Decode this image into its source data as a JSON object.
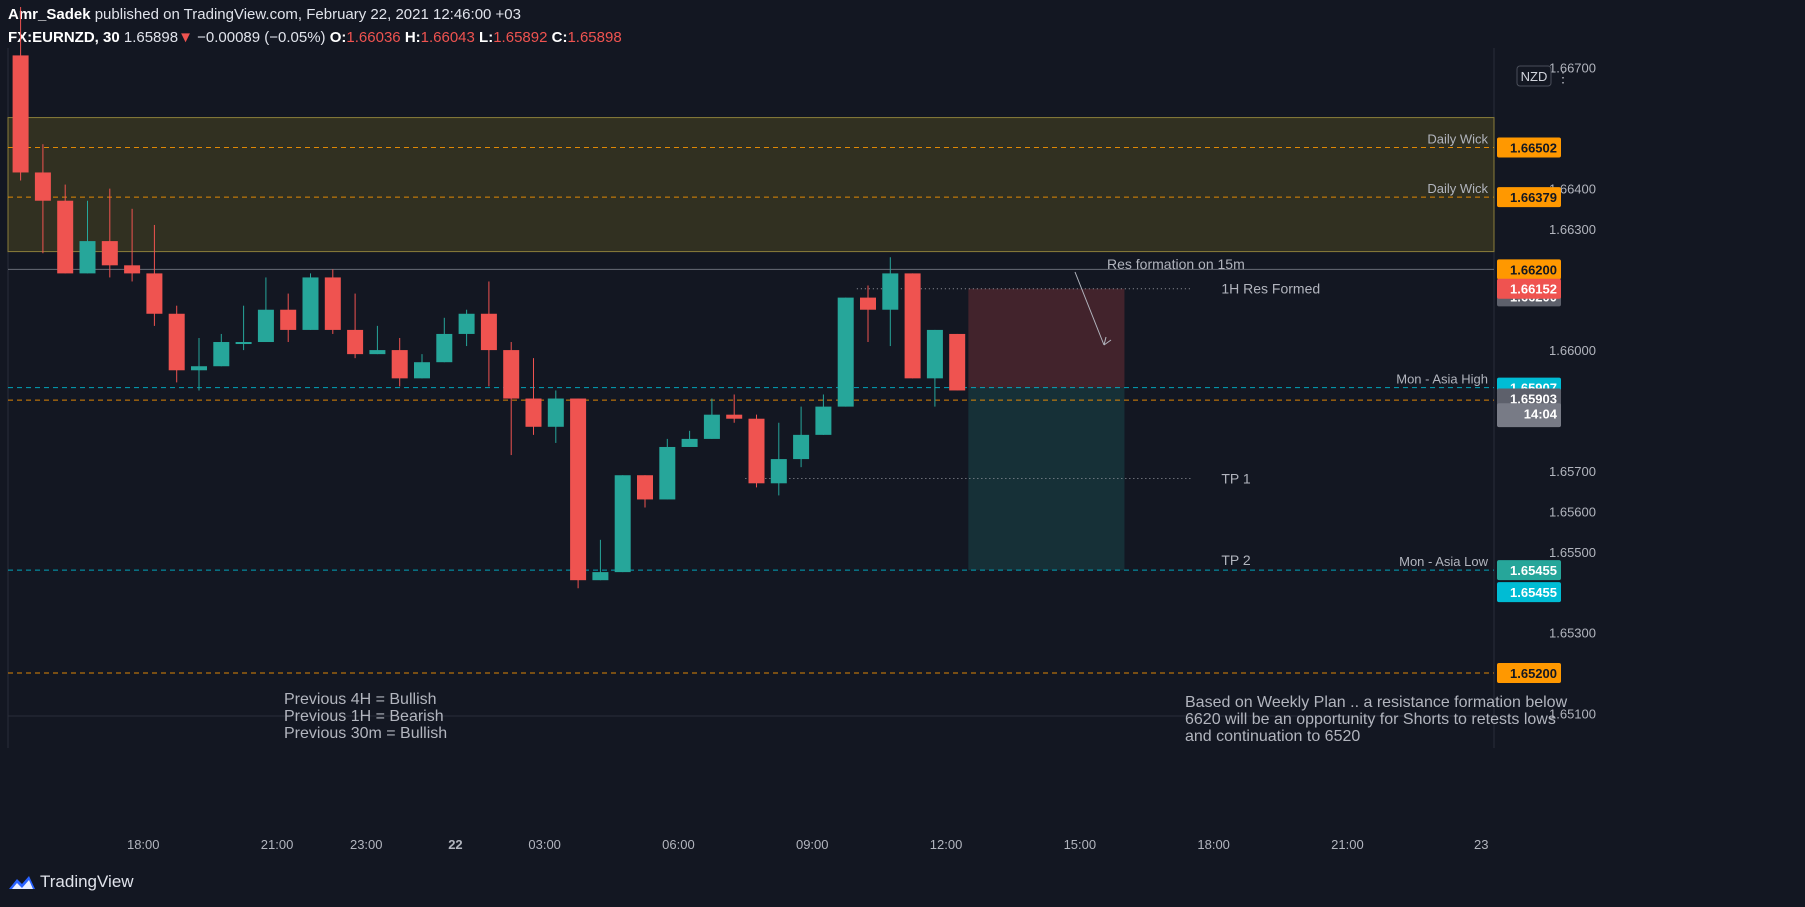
{
  "header": {
    "author": "Amr_Sadek",
    "published": "published on TradingView.com, February 22, 2021 12:46:00 +03",
    "symbol": "FX:EURNZD, 30",
    "last": "1.65898",
    "change": "−0.00089 (−0.05%)",
    "o_label": "O:",
    "o": "1.66036",
    "h_label": "H:",
    "h": "1.66043",
    "l_label": "L:",
    "l": "1.65892",
    "c_label": "C:",
    "c": "1.65898"
  },
  "footer": {
    "brand": "TradingView"
  },
  "colors": {
    "up": "#26a69a",
    "down": "#ef5350",
    "bg": "#131722",
    "orange": "#ff9800",
    "cyan": "#00bcd4",
    "grey": "#787b86"
  },
  "chart_data": {
    "type": "candlestick",
    "symbol": "FX:EURNZD",
    "interval": "30",
    "currency_badge": "NZD",
    "ylim": [
      1.6505,
      1.6675
    ],
    "y_ticks": [
      {
        "v": 1.651,
        "label": "1.65100"
      },
      {
        "v": 1.653,
        "label": "1.65300"
      },
      {
        "v": 1.655,
        "label": "1.65500"
      },
      {
        "v": 1.656,
        "label": "1.65600"
      },
      {
        "v": 1.657,
        "label": "1.65700"
      },
      {
        "v": 1.66,
        "label": "1.66000"
      },
      {
        "v": 1.663,
        "label": "1.66300"
      },
      {
        "v": 1.664,
        "label": "1.66400"
      },
      {
        "v": 1.667,
        "label": "1.66700"
      }
    ],
    "x_ticks": [
      {
        "i": 5.5,
        "label": "18:00"
      },
      {
        "i": 11.5,
        "label": "21:00"
      },
      {
        "i": 15.5,
        "label": "23:00"
      },
      {
        "i": 19.5,
        "label": "22"
      },
      {
        "i": 23.5,
        "label": "03:00"
      },
      {
        "i": 29.5,
        "label": "06:00"
      },
      {
        "i": 35.5,
        "label": "09:00"
      },
      {
        "i": 41.5,
        "label": "12:00"
      },
      {
        "i": 47.5,
        "label": "15:00"
      },
      {
        "i": 53.5,
        "label": "18:00"
      },
      {
        "i": 59.5,
        "label": "21:00"
      },
      {
        "i": 65.5,
        "label": "23"
      }
    ],
    "candles": [
      {
        "o": 1.6673,
        "h": 1.6685,
        "l": 1.6642,
        "c": 1.6644
      },
      {
        "o": 1.6644,
        "h": 1.6651,
        "l": 1.6624,
        "c": 1.6637
      },
      {
        "o": 1.6637,
        "h": 1.6641,
        "l": 1.6619,
        "c": 1.6619
      },
      {
        "o": 1.6619,
        "h": 1.6637,
        "l": 1.6619,
        "c": 1.6627
      },
      {
        "o": 1.6627,
        "h": 1.664,
        "l": 1.6618,
        "c": 1.6621
      },
      {
        "o": 1.6621,
        "h": 1.6635,
        "l": 1.6617,
        "c": 1.6619
      },
      {
        "o": 1.6619,
        "h": 1.6631,
        "l": 1.6606,
        "c": 1.6609
      },
      {
        "o": 1.6609,
        "h": 1.6611,
        "l": 1.6592,
        "c": 1.6595
      },
      {
        "o": 1.6595,
        "h": 1.6603,
        "l": 1.659,
        "c": 1.6596
      },
      {
        "o": 1.6596,
        "h": 1.6604,
        "l": 1.6596,
        "c": 1.6602
      },
      {
        "o": 1.6602,
        "h": 1.6611,
        "l": 1.66,
        "c": 1.6602
      },
      {
        "o": 1.6602,
        "h": 1.6618,
        "l": 1.6602,
        "c": 1.661
      },
      {
        "o": 1.661,
        "h": 1.6614,
        "l": 1.6602,
        "c": 1.6605
      },
      {
        "o": 1.6605,
        "h": 1.6619,
        "l": 1.6605,
        "c": 1.6618
      },
      {
        "o": 1.6618,
        "h": 1.662,
        "l": 1.6604,
        "c": 1.6605
      },
      {
        "o": 1.6605,
        "h": 1.6614,
        "l": 1.6598,
        "c": 1.6599
      },
      {
        "o": 1.6599,
        "h": 1.6606,
        "l": 1.6599,
        "c": 1.66
      },
      {
        "o": 1.66,
        "h": 1.6603,
        "l": 1.6591,
        "c": 1.6593
      },
      {
        "o": 1.6593,
        "h": 1.6599,
        "l": 1.6593,
        "c": 1.6597
      },
      {
        "o": 1.6597,
        "h": 1.6608,
        "l": 1.6597,
        "c": 1.6604
      },
      {
        "o": 1.6604,
        "h": 1.661,
        "l": 1.6601,
        "c": 1.6609
      },
      {
        "o": 1.6609,
        "h": 1.6617,
        "l": 1.6591,
        "c": 1.66
      },
      {
        "o": 1.66,
        "h": 1.6602,
        "l": 1.6574,
        "c": 1.6588
      },
      {
        "o": 1.6588,
        "h": 1.6598,
        "l": 1.6579,
        "c": 1.6581
      },
      {
        "o": 1.6581,
        "h": 1.659,
        "l": 1.6577,
        "c": 1.6588
      },
      {
        "o": 1.6588,
        "h": 1.6588,
        "l": 1.6541,
        "c": 1.6543
      },
      {
        "o": 1.6543,
        "h": 1.6553,
        "l": 1.6543,
        "c": 1.6545
      },
      {
        "o": 1.6545,
        "h": 1.6569,
        "l": 1.6545,
        "c": 1.6569
      },
      {
        "o": 1.6569,
        "h": 1.6569,
        "l": 1.6561,
        "c": 1.6563
      },
      {
        "o": 1.6563,
        "h": 1.6578,
        "l": 1.6563,
        "c": 1.6576
      },
      {
        "o": 1.6576,
        "h": 1.658,
        "l": 1.6576,
        "c": 1.6578
      },
      {
        "o": 1.6578,
        "h": 1.6588,
        "l": 1.6578,
        "c": 1.6584
      },
      {
        "o": 1.6584,
        "h": 1.6589,
        "l": 1.6582,
        "c": 1.6583
      },
      {
        "o": 1.6583,
        "h": 1.6584,
        "l": 1.6566,
        "c": 1.6567
      },
      {
        "o": 1.6567,
        "h": 1.6582,
        "l": 1.6564,
        "c": 1.6573
      },
      {
        "o": 1.6573,
        "h": 1.6586,
        "l": 1.6571,
        "c": 1.6579
      },
      {
        "o": 1.6579,
        "h": 1.6589,
        "l": 1.6579,
        "c": 1.6586
      },
      {
        "o": 1.6586,
        "h": 1.6613,
        "l": 1.6586,
        "c": 1.6613
      },
      {
        "o": 1.6613,
        "h": 1.6616,
        "l": 1.6602,
        "c": 1.661
      },
      {
        "o": 1.661,
        "h": 1.6623,
        "l": 1.6601,
        "c": 1.6619
      },
      {
        "o": 1.6619,
        "h": 1.6619,
        "l": 1.6593,
        "c": 1.6593
      },
      {
        "o": 1.6593,
        "h": 1.6605,
        "l": 1.6586,
        "c": 1.6605
      },
      {
        "o": 1.6604,
        "h": 1.6604,
        "l": 1.659,
        "c": 1.659
      }
    ],
    "h_levels": [
      {
        "v": 1.66502,
        "label": "1.66502",
        "badge": "#ff9800",
        "line": "#ff9800",
        "style": "dash",
        "text": "Daily Wick"
      },
      {
        "v": 1.66379,
        "label": "1.66379",
        "badge": "#ff9800",
        "line": "#ff9800",
        "style": "dash",
        "text": "Daily Wick"
      },
      {
        "v": 1.662,
        "label": "1.66200",
        "badge": "#ff9800",
        "line": "#787b86",
        "style": "solid",
        "text": ""
      },
      {
        "v": 1.65907,
        "label": "1.65907",
        "badge": "#00bcd4",
        "line": "#00bcd4",
        "style": "dash",
        "text": "Mon - Asia High"
      },
      {
        "v": 1.65876,
        "label": "1.65876",
        "badge": "#ff9800",
        "line": "#ff9800",
        "style": "dash",
        "text": ""
      },
      {
        "v": 1.65455,
        "label": "1.65455",
        "badge": "#26a69a",
        "line": "#00bcd4",
        "style": "dash",
        "text": "Mon - Asia Low"
      },
      {
        "v": 1.652,
        "label": "1.65200",
        "badge": "#ff9800",
        "line": "#ff9800",
        "style": "dash",
        "text": ""
      }
    ],
    "extra_badges": [
      {
        "v": 1.662,
        "label": "1.66200",
        "color": "#5d606b",
        "slot": 1
      },
      {
        "v": 1.66152,
        "label": "1.66152",
        "color": "#ef5350",
        "slot": 0
      },
      {
        "v": 1.65903,
        "label": "1.65903",
        "color": "#5d606b",
        "slot": 0
      },
      {
        "v": 1.65898,
        "label": "1.65898",
        "color": "#787b86",
        "slot": 0
      },
      {
        "v": 1.65898,
        "label": "14:04",
        "color": "#787b86",
        "slot": 2
      },
      {
        "v": 1.65455,
        "label": "1.65455",
        "color": "#00bcd4",
        "slot": 3
      }
    ],
    "zone": {
      "top": 1.66576,
      "bottom": 1.66244
    },
    "position": {
      "i_start": 42.5,
      "i_end": 49.5,
      "entry": 1.65907,
      "stop": 1.66152,
      "target": 1.65455
    },
    "dotted_lines": [
      {
        "v": 1.66152,
        "i_start": 37.5,
        "i_end": 52.5,
        "text": "1H Res Formed"
      },
      {
        "v": 1.65682,
        "i_start": 32.5,
        "i_end": 52.5,
        "text": "TP 1"
      }
    ],
    "tp2_label": {
      "v": 1.65455,
      "i": 52.5,
      "text": "TP 2"
    },
    "annotations": {
      "res_formation": "Res formation on 15m",
      "bias": [
        "Previous 4H = Bullish",
        "Previous 1H = Bearish",
        "Previous 30m = Bullish"
      ],
      "plan": [
        "Based on Weekly Plan .. a resistance formation below",
        "6620 will be an opportunity for Shorts to retests lows",
        "and continuation to 6520"
      ]
    }
  }
}
